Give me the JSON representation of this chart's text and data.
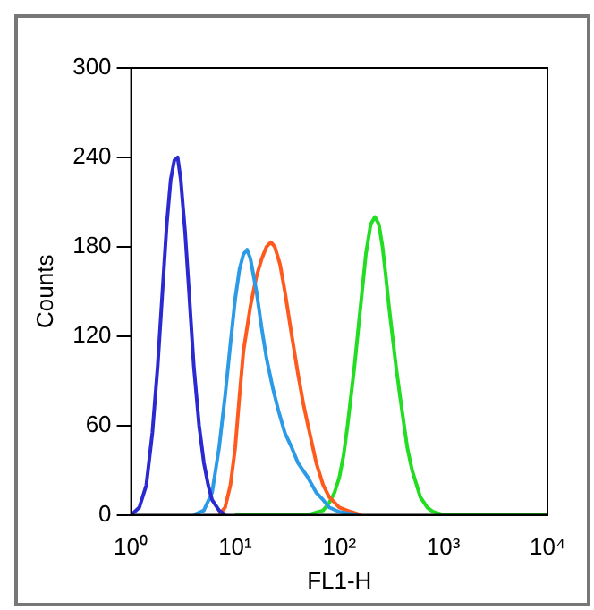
{
  "chart_data": {
    "type": "line",
    "xlabel": "FL1-H",
    "ylabel": "Counts",
    "log": "x",
    "xlim": [
      1,
      10000
    ],
    "ylim": [
      0,
      300
    ],
    "xticks": [
      {
        "value": 1,
        "label": "10⁰"
      },
      {
        "value": 10,
        "label": "10¹"
      },
      {
        "value": 100,
        "label": "10²"
      },
      {
        "value": 1000,
        "label": "10³"
      },
      {
        "value": 10000,
        "label": "10⁴"
      }
    ],
    "yticks": [
      0,
      60,
      120,
      180,
      240,
      300
    ],
    "grid": false,
    "legend": false,
    "marker": "none",
    "line_style": "solid",
    "series": [
      {
        "color": "#2a2ad0",
        "x": [
          1,
          1.2,
          1.4,
          1.6,
          1.8,
          2,
          2.2,
          2.4,
          2.6,
          2.8,
          3,
          3.3,
          3.6,
          4,
          4.5,
          5,
          5.5,
          6,
          7,
          8
        ],
        "values": [
          0,
          5,
          20,
          55,
          100,
          150,
          195,
          225,
          238,
          240,
          225,
          190,
          150,
          100,
          60,
          35,
          20,
          10,
          3,
          0
        ]
      },
      {
        "color": "#2b9be8",
        "x": [
          4,
          5,
          6,
          7,
          8,
          9,
          10,
          11,
          12,
          13,
          14,
          16,
          18,
          20,
          23,
          26,
          30,
          35,
          40,
          50,
          60,
          70,
          80,
          100,
          150
        ],
        "values": [
          0,
          3,
          15,
          45,
          80,
          115,
          145,
          165,
          175,
          178,
          172,
          150,
          125,
          105,
          85,
          70,
          55,
          45,
          35,
          25,
          15,
          10,
          5,
          2,
          0
        ]
      },
      {
        "color": "#ff5a1e",
        "x": [
          7,
          8,
          9,
          10,
          11,
          12,
          14,
          16,
          18,
          20,
          22,
          24,
          27,
          30,
          35,
          40,
          45,
          50,
          60,
          70,
          80,
          100,
          130,
          160
        ],
        "values": [
          0,
          5,
          20,
          45,
          80,
          110,
          140,
          160,
          172,
          180,
          183,
          180,
          168,
          150,
          120,
          95,
          75,
          60,
          35,
          20,
          12,
          5,
          2,
          0
        ]
      },
      {
        "color": "#22dd22",
        "x": [
          10,
          50,
          70,
          80,
          90,
          100,
          110,
          120,
          140,
          160,
          180,
          200,
          220,
          240,
          260,
          280,
          300,
          350,
          400,
          450,
          500,
          600,
          700,
          800,
          1000,
          10000
        ],
        "values": [
          0,
          0,
          3,
          8,
          15,
          25,
          40,
          60,
          100,
          140,
          175,
          195,
          200,
          195,
          180,
          160,
          140,
          100,
          70,
          45,
          30,
          12,
          5,
          2,
          0,
          0
        ]
      }
    ]
  }
}
